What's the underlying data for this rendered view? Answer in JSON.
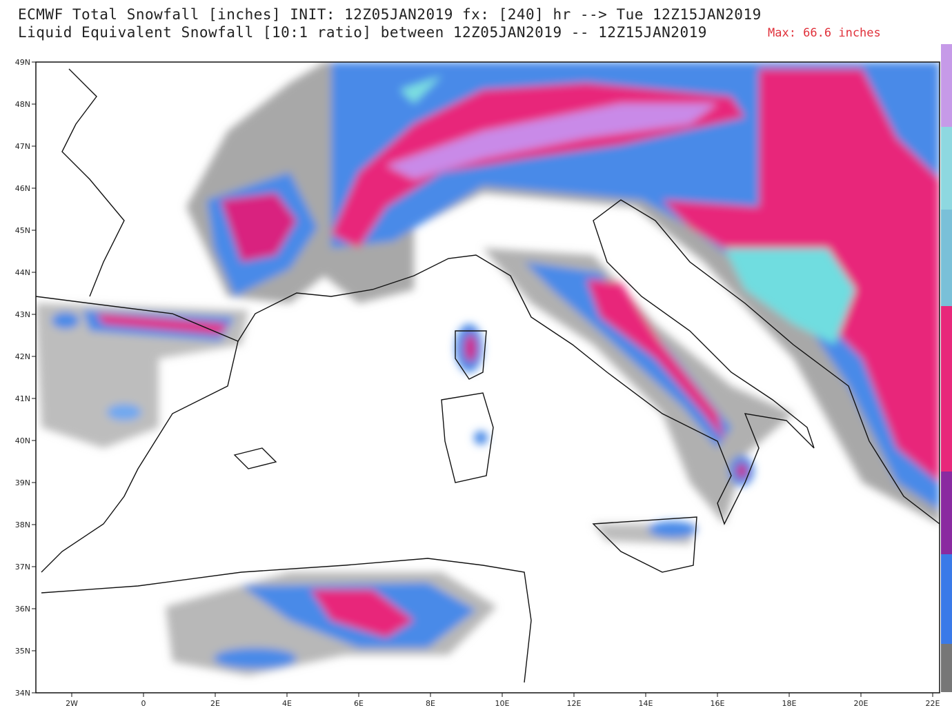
{
  "header": {
    "line1": "ECMWF Total Snowfall [inches] INIT: 12Z05JAN2019 fx: [240] hr --> Tue 12Z15JAN2019",
    "line2": "Liquid Equivalent Snowfall [10:1 ratio] between 12Z05JAN2019 -- 12Z15JAN2019",
    "max": "Max: 66.6 inches"
  },
  "map": {
    "lat_labels": [
      "49N",
      "48N",
      "47N",
      "46N",
      "45N",
      "44N",
      "43N",
      "42N",
      "41N",
      "40N",
      "39N",
      "38N",
      "37N",
      "36N",
      "35N",
      "34N"
    ],
    "lon_labels": [
      "2W",
      "0",
      "2E",
      "4E",
      "6E",
      "8E",
      "10E",
      "12E",
      "14E",
      "16E",
      "18E",
      "20E",
      "22E"
    ]
  }
}
